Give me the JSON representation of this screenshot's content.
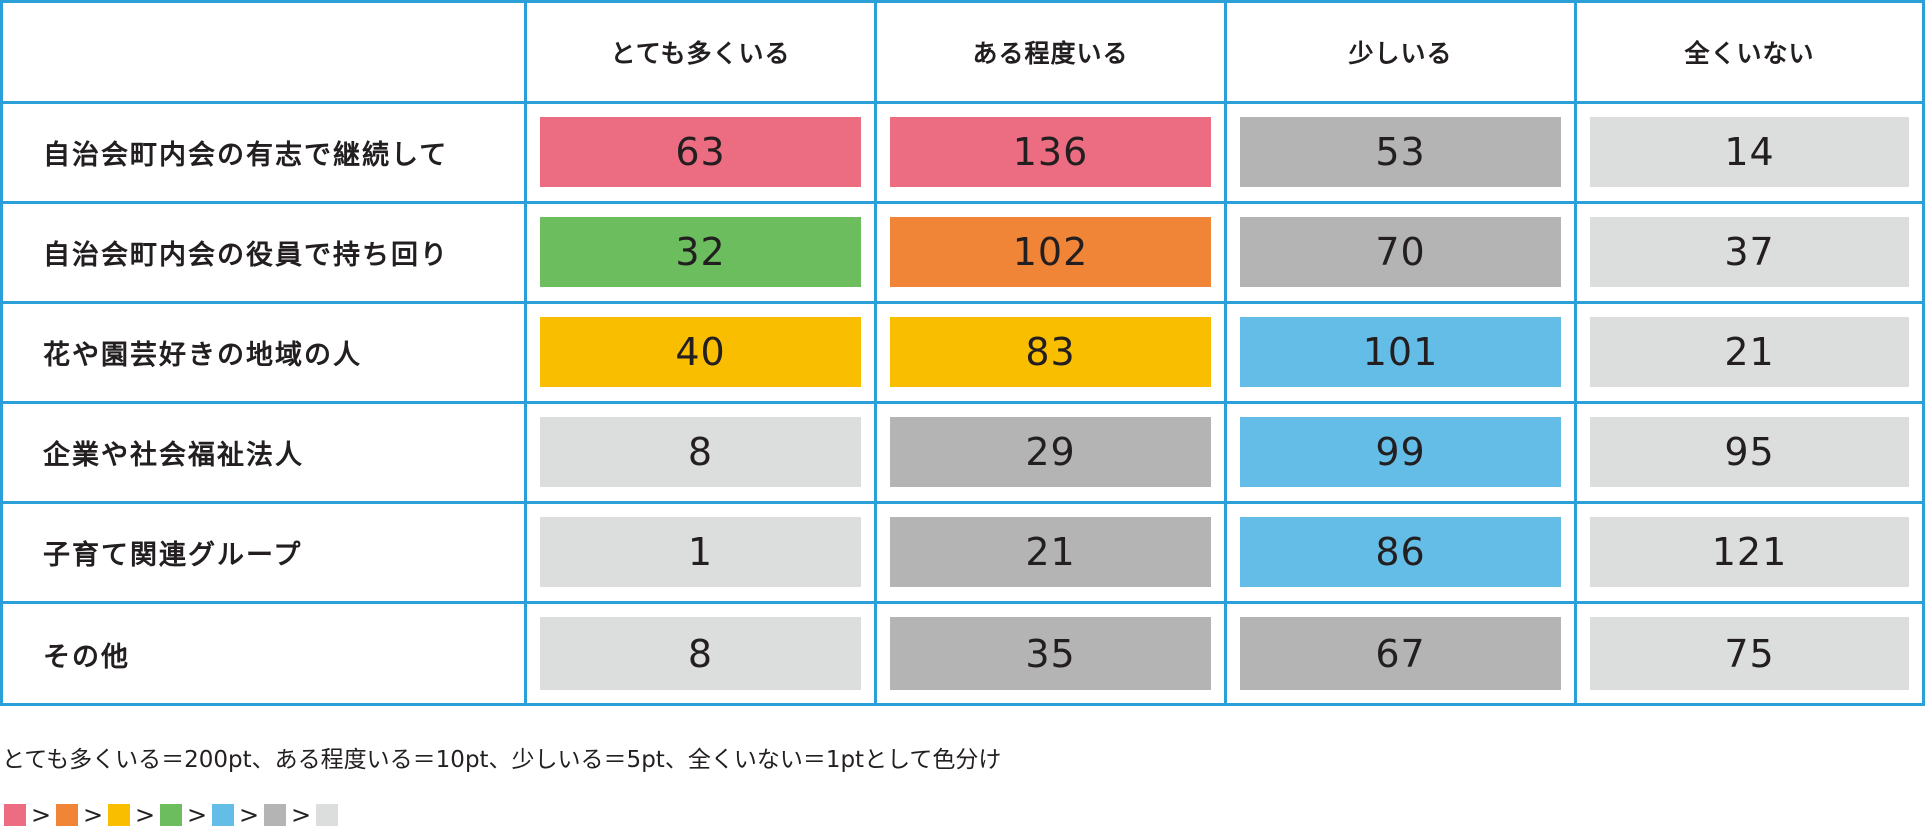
{
  "chart_data": {
    "type": "table",
    "columns": [
      "",
      "とても多くいる",
      "ある程度いる",
      "少しいる",
      "全くいない"
    ],
    "rows": [
      {
        "label": "自治会町内会の有志で継続して",
        "values": [
          63,
          136,
          53,
          14
        ],
        "colors": [
          "#ec6d82",
          "#ec6d82",
          "#b4b4b4",
          "#dcdddd"
        ]
      },
      {
        "label": "自治会町内会の役員で持ち回り",
        "values": [
          32,
          102,
          70,
          37
        ],
        "colors": [
          "#6cbd5d",
          "#f08537",
          "#b4b4b4",
          "#dcdddd"
        ]
      },
      {
        "label": "花や園芸好きの地域の人",
        "values": [
          40,
          83,
          101,
          21
        ],
        "colors": [
          "#f9be00",
          "#f9be00",
          "#63bde6",
          "#dcdddd"
        ]
      },
      {
        "label": "企業や社会福祉法人",
        "values": [
          8,
          29,
          99,
          95
        ],
        "colors": [
          "#dcdddd",
          "#b4b4b4",
          "#63bde6",
          "#dcdddd"
        ]
      },
      {
        "label": "子育て関連グループ",
        "values": [
          1,
          21,
          86,
          121
        ],
        "colors": [
          "#dcdddd",
          "#b4b4b4",
          "#63bde6",
          "#dcdddd"
        ]
      },
      {
        "label": "その他",
        "values": [
          8,
          35,
          67,
          75
        ],
        "colors": [
          "#dcdddd",
          "#b4b4b4",
          "#b4b4b4",
          "#dcdddd"
        ]
      }
    ],
    "note": "とても多くいる＝200pt、ある程度いる＝10pt、少しいる＝5pt、全くいない＝1ptとして色分け",
    "legend": {
      "separator": ">",
      "order": [
        "#ec6d82",
        "#f08537",
        "#f9be00",
        "#6cbd5d",
        "#63bde6",
        "#b4b4b4",
        "#dcdddd"
      ]
    },
    "border_color": "#2a9fd8"
  }
}
